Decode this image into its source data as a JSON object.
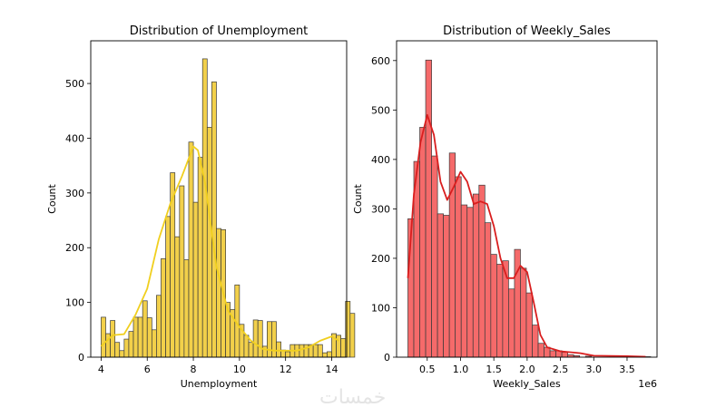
{
  "watermark": "خمسات",
  "chart_data": [
    {
      "type": "histogram",
      "title": "Distribution of Unemployment",
      "xlabel": "Unemployment",
      "ylabel": "Count",
      "color": "#f2d04a",
      "edge_color": "#3a3a3a",
      "kde_color": "#f0cf1f",
      "xlim": [
        3.55,
        14.65
      ],
      "ylim": [
        0,
        578
      ],
      "xticks": [
        4,
        6,
        8,
        10,
        12,
        14
      ],
      "xtick_labels": [
        "4",
        "6",
        "8",
        "10",
        "12",
        "14"
      ],
      "yticks": [
        0,
        100,
        200,
        300,
        400,
        500
      ],
      "ytick_labels": [
        "0",
        "100",
        "200",
        "300",
        "400",
        "500"
      ],
      "bin_start": 4.0,
      "bin_width": 0.2,
      "counts": [
        73,
        43,
        67,
        27,
        12,
        33,
        47,
        73,
        73,
        103,
        72,
        50,
        113,
        180,
        257,
        337,
        220,
        313,
        178,
        393,
        283,
        365,
        545,
        420,
        503,
        235,
        233,
        100,
        87,
        132,
        60,
        40,
        27,
        68,
        67,
        20,
        65,
        65,
        28,
        13,
        10,
        23,
        23,
        23,
        23,
        23,
        23,
        23,
        8,
        10,
        43,
        40,
        34,
        102,
        80
      ],
      "kde_x": [
        4.0,
        4.5,
        5.0,
        5.5,
        6.0,
        6.5,
        7.0,
        7.5,
        8.0,
        8.2,
        8.5,
        9.0,
        9.5,
        10.0,
        10.5,
        11.0,
        11.5,
        12.0,
        12.5,
        13.0,
        13.5,
        14.0,
        14.3
      ],
      "kde_y": [
        20,
        40,
        42,
        78,
        125,
        215,
        280,
        330,
        385,
        378,
        320,
        165,
        85,
        55,
        30,
        15,
        12,
        12,
        12,
        18,
        30,
        38,
        30
      ]
    },
    {
      "type": "histogram",
      "title": "Distribution of Weekly_Sales",
      "xlabel": "Weekly_Sales",
      "ylabel": "Count",
      "offset_text": "1e6",
      "color": "#f56a6a",
      "edge_color": "#3a3a3a",
      "kde_color": "#d91e1e",
      "xlim": [
        0.04,
        3.95
      ],
      "ylim": [
        0,
        640
      ],
      "xticks": [
        0.5,
        1.0,
        1.5,
        2.0,
        2.5,
        3.0,
        3.5
      ],
      "xtick_labels": [
        "0.5",
        "1.0",
        "1.5",
        "2.0",
        "2.5",
        "3.0",
        "3.5"
      ],
      "yticks": [
        0,
        100,
        200,
        300,
        400,
        500,
        600
      ],
      "ytick_labels": [
        "0",
        "100",
        "200",
        "300",
        "400",
        "500",
        "600"
      ],
      "bin_start": 0.21,
      "bin_width": 0.0889,
      "counts": [
        280,
        396,
        465,
        601,
        407,
        290,
        287,
        413,
        365,
        308,
        303,
        330,
        348,
        272,
        208,
        188,
        195,
        138,
        218,
        180,
        130,
        65,
        28,
        20,
        13,
        13,
        10,
        5,
        3,
        0,
        2,
        0,
        0,
        0,
        0,
        0,
        0,
        0,
        0,
        0,
        1
      ],
      "kde_x": [
        0.21,
        0.3,
        0.4,
        0.5,
        0.6,
        0.7,
        0.8,
        0.9,
        1.0,
        1.1,
        1.2,
        1.3,
        1.4,
        1.5,
        1.6,
        1.7,
        1.8,
        1.9,
        2.0,
        2.1,
        2.2,
        2.3,
        2.5,
        2.8,
        3.0,
        3.5,
        3.78
      ],
      "kde_y": [
        160,
        330,
        435,
        490,
        450,
        355,
        318,
        345,
        375,
        355,
        310,
        315,
        310,
        265,
        200,
        160,
        160,
        185,
        172,
        110,
        45,
        20,
        12,
        8,
        3,
        2,
        1
      ]
    }
  ]
}
